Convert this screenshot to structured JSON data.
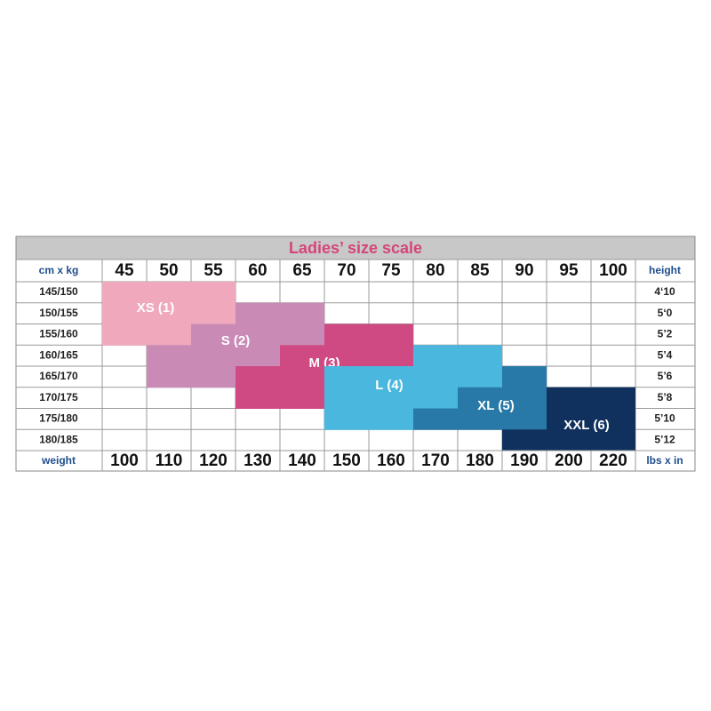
{
  "title": "Ladies’ size scale",
  "header": {
    "label": "cm x kg",
    "kg": [
      45,
      50,
      55,
      60,
      65,
      70,
      75,
      80,
      85,
      90,
      95,
      100
    ],
    "end": "height"
  },
  "rows": [
    {
      "cm": "145/150",
      "height": "4‘10"
    },
    {
      "cm": "150/155",
      "height": "5‘0"
    },
    {
      "cm": "155/160",
      "height": "5’2"
    },
    {
      "cm": "160/165",
      "height": "5’4"
    },
    {
      "cm": "165/170",
      "height": "5’6"
    },
    {
      "cm": "170/175",
      "height": "5’8"
    },
    {
      "cm": "175/180",
      "height": "5’10"
    },
    {
      "cm": "180/185",
      "height": "5’12"
    }
  ],
  "footer": {
    "label": "weight",
    "lbs": [
      100,
      110,
      120,
      130,
      140,
      150,
      160,
      170,
      180,
      190,
      200,
      220
    ],
    "end": "lbs x in"
  },
  "sizes": [
    "XS (1)",
    "S (2)",
    "M (3)",
    "L (4)",
    "XL (5)",
    "XXL (6)"
  ]
}
